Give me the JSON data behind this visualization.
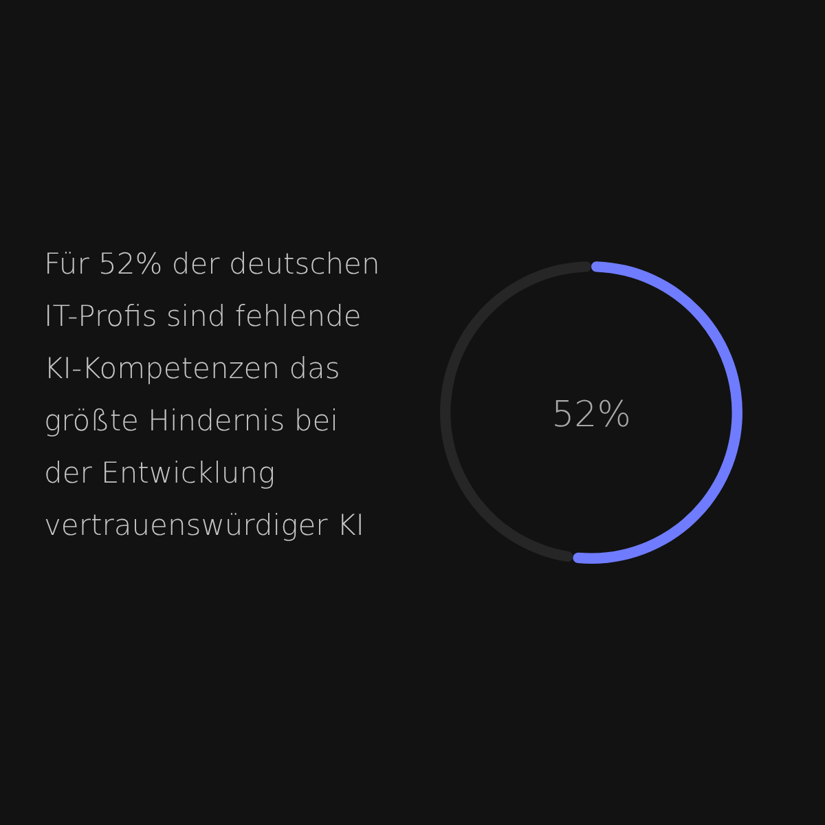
{
  "chart_data": {
    "type": "donut",
    "title": "Für 52% der deutschen IT-Profis sind fehlende KI-Kompetenzen das größte Hindernis bei der Entwicklung vertrauenswürdiger KI",
    "categories": [
      null,
      null
    ],
    "values": [
      52,
      48
    ],
    "colors": [
      "#6f7cff",
      "#262626"
    ],
    "annotations": [
      "52%"
    ]
  }
}
